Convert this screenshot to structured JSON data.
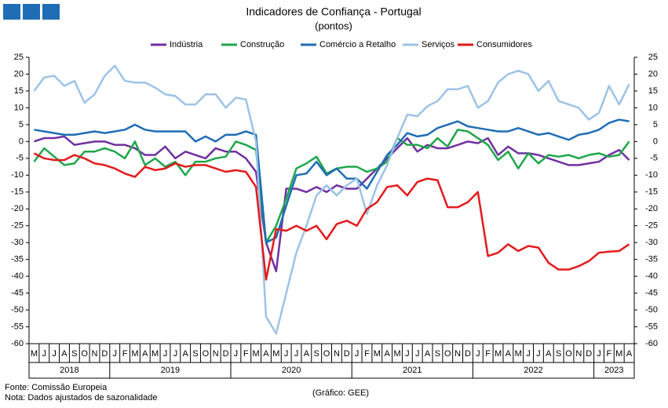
{
  "chart_data": {
    "type": "line",
    "title": "Indicadores de Confiança - Portugal",
    "subtitle": "(pontos)",
    "categories": [
      "M",
      "J",
      "J",
      "A",
      "S",
      "O",
      "N",
      "D",
      "J",
      "F",
      "M",
      "A",
      "M",
      "J",
      "J",
      "A",
      "S",
      "O",
      "N",
      "D",
      "J",
      "F",
      "M",
      "A",
      "M",
      "J",
      "J",
      "A",
      "S",
      "O",
      "N",
      "D",
      "J",
      "F",
      "M",
      "A",
      "M",
      "J",
      "J",
      "A",
      "S",
      "O",
      "N",
      "D",
      "J",
      "F",
      "M",
      "A",
      "M",
      "J",
      "J",
      "A",
      "S",
      "O",
      "N",
      "D",
      "J",
      "F",
      "M",
      "A"
    ],
    "years": [
      "2018",
      "2019",
      "2020",
      "2021",
      "2022",
      "2023"
    ],
    "series": [
      {
        "name": "Indústria",
        "color": "#7030a0",
        "values": [
          0,
          1,
          1,
          1.5,
          -1,
          -0.5,
          0,
          0,
          -1,
          -1,
          -2,
          -4,
          -4,
          -1.5,
          -5,
          -3,
          -4,
          -5,
          -2,
          -3,
          -3,
          -5,
          -9,
          -30,
          -38.5,
          -14,
          -14,
          -15,
          -13.5,
          -15,
          -13,
          -14,
          -14,
          -11,
          -8,
          -5,
          -2,
          1,
          -3,
          -1,
          -2,
          -2,
          -1,
          0,
          -0.5,
          1,
          -4,
          -1.5,
          -3.5,
          -3.5,
          -4,
          -5,
          -6,
          -7,
          -7,
          -6.5,
          -6,
          -4,
          -2.5,
          -5.5
        ]
      },
      {
        "name": "Construção",
        "color": "#1fa64b",
        "values": [
          -6,
          -2,
          -4.5,
          -7,
          -6.5,
          -3,
          -3,
          -2,
          -3,
          -5,
          0,
          -7,
          -5,
          -7.5,
          -6,
          -10,
          -6,
          -6,
          -5,
          -4.5,
          0,
          -1,
          -2.5,
          -30,
          -25,
          -17,
          -8,
          -6.5,
          -4.5,
          -9.5,
          -8,
          -7.5,
          -7.5,
          -9,
          -8,
          -6,
          1,
          -1,
          -1,
          -2,
          1,
          -1.5,
          3.5,
          3,
          1,
          -1,
          -5.5,
          -3,
          -8,
          -3.5,
          -6.5,
          -4,
          -4.5,
          -4,
          -5,
          -4,
          -3.5,
          -4.5,
          -4,
          0
        ]
      },
      {
        "name": "Comércio a Retalho",
        "color": "#1f6db5",
        "values": [
          3.5,
          3,
          2.5,
          2,
          2,
          2.5,
          3,
          2.5,
          3,
          3.5,
          5,
          3.5,
          3,
          3,
          3,
          3,
          0,
          1.5,
          0,
          2,
          2,
          3,
          2,
          -30,
          -28.5,
          -19,
          -10,
          -9.5,
          -6,
          -10,
          -8,
          -11,
          -11,
          -14,
          -9,
          -4,
          -1,
          2.5,
          1.5,
          2,
          4,
          5,
          6,
          4.5,
          4,
          3.5,
          3,
          3,
          4,
          3,
          2,
          2.5,
          1.5,
          0.5,
          2,
          2.5,
          3.5,
          5.5,
          6.5,
          6
        ]
      },
      {
        "name": "Serviços",
        "color": "#9dc3e6",
        "values": [
          15,
          19,
          19.5,
          16.5,
          18,
          11.5,
          14,
          19.5,
          22.5,
          18,
          17.5,
          17.5,
          16,
          14,
          13.5,
          11,
          11,
          14,
          14,
          10,
          13,
          12.5,
          0,
          -52,
          -57,
          -45,
          -33,
          -25,
          -16,
          -13,
          -16,
          -13,
          -11,
          -21.5,
          -13,
          -7,
          1,
          8,
          7.5,
          10.5,
          12,
          15.5,
          15.5,
          16.5,
          10,
          12,
          17.5,
          20,
          21,
          20,
          15,
          18,
          12,
          11,
          10,
          6.5,
          8.5,
          16.5,
          11,
          17
        ]
      },
      {
        "name": "Consumidores",
        "color": "#e31a1c",
        "values": [
          -3.5,
          -5,
          -5.5,
          -5.5,
          -4,
          -5,
          -6.5,
          -7,
          -8,
          -9.5,
          -10.5,
          -7.5,
          -8.5,
          -8,
          -6.5,
          -7.5,
          -7,
          -7,
          -8,
          -9,
          -8.5,
          -9,
          -13.5,
          -41,
          -26,
          -26.5,
          -25,
          -26.5,
          -25,
          -29,
          -24.5,
          -23.5,
          -25,
          -20,
          -18,
          -13.5,
          -13,
          -16,
          -12,
          -11,
          -11.5,
          -19.5,
          -19.5,
          -18,
          -15,
          -34,
          -33,
          -30.5,
          -32.5,
          -31,
          -31.5,
          -36,
          -38,
          -38,
          -37,
          -35.5,
          -33,
          -32.7,
          -32.5,
          -30.5
        ]
      }
    ],
    "ylim": [
      -60,
      25
    ],
    "yticks": [
      25,
      20,
      15,
      10,
      5,
      0,
      -5,
      -10,
      -15,
      -20,
      -25,
      -30,
      -35,
      -40,
      -45,
      -50,
      -55,
      -60
    ],
    "y2lim": [
      -60,
      25
    ],
    "y2ticks": [
      25,
      20,
      15,
      10,
      5,
      0,
      -5,
      -10,
      -15,
      -20,
      -25,
      -30,
      -35,
      -40,
      -45,
      -50,
      -55,
      -60
    ],
    "legend": "top",
    "source": "Fonte: Comissão Europeia",
    "note": "Nota: Dados ajustados de sazonalidade",
    "credit": "(Gráfico: GEE)"
  }
}
